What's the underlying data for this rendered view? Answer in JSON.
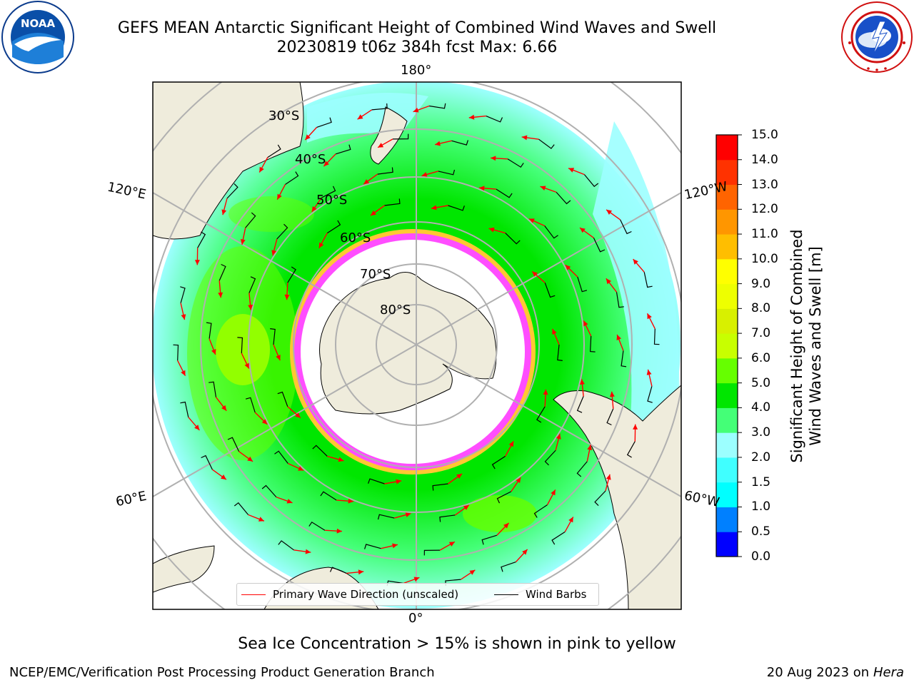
{
  "header": {
    "title_line1": "GEFS MEAN Antarctic Significant Height of Combined Wind Waves and Swell",
    "title_line2": "20230819 t06z 384h fcst   Max: 6.66"
  },
  "logos": {
    "left": {
      "name": "NOAA",
      "ring_text": "NATIONAL OCEANIC AND ATMOSPHERIC ADMINISTRATION · U.S. DEPARTMENT OF COMMERCE"
    },
    "right": {
      "ring_text": "NATIONAL WEATHER SERVICE"
    }
  },
  "map": {
    "projection": "south-polar-stereographic",
    "longitude_labels": {
      "top": "180°",
      "bottom": "0°",
      "upper_left": "120°E",
      "lower_left": "60°E",
      "upper_right": "120°W",
      "lower_right": "60°W"
    },
    "latitude_labels": [
      "30°S",
      "40°S",
      "50°S",
      "60°S",
      "70°S",
      "80°S"
    ],
    "colors": {
      "land": "#efecdc",
      "ice_white": "#ffffff",
      "ice_edge_pink": "#ff4dff",
      "ice_edge_yellow": "#ffc832",
      "grid": "#b0b0b0",
      "wave_arrow": "#ff0000",
      "wind_barb": "#000000"
    }
  },
  "colorbar": {
    "label_line1": "Significant Height of Combined",
    "label_line2": "Wind Waves and Swell [m]",
    "ticks": [
      "15.0",
      "14.0",
      "13.0",
      "12.0",
      "11.0",
      "10.0",
      "9.0",
      "8.0",
      "7.0",
      "6.0",
      "5.0",
      "4.0",
      "3.0",
      "2.0",
      "1.5",
      "1.0",
      "0.5",
      "0.0"
    ],
    "bins": [
      {
        "from": 0.0,
        "to": 0.5,
        "color": "#0000ff"
      },
      {
        "from": 0.5,
        "to": 1.0,
        "color": "#0080ff"
      },
      {
        "from": 1.0,
        "to": 1.5,
        "color": "#00ffff"
      },
      {
        "from": 1.5,
        "to": 2.0,
        "color": "#40ffff"
      },
      {
        "from": 2.0,
        "to": 3.0,
        "color": "#9cffff"
      },
      {
        "from": 3.0,
        "to": 4.0,
        "color": "#44ff77"
      },
      {
        "from": 4.0,
        "to": 5.0,
        "color": "#00e600"
      },
      {
        "from": 5.0,
        "to": 6.0,
        "color": "#66ff00"
      },
      {
        "from": 6.0,
        "to": 7.0,
        "color": "#c8ff00"
      },
      {
        "from": 7.0,
        "to": 8.0,
        "color": "#d8f000"
      },
      {
        "from": 8.0,
        "to": 9.0,
        "color": "#eeff00"
      },
      {
        "from": 9.0,
        "to": 10.0,
        "color": "#ffff00"
      },
      {
        "from": 10.0,
        "to": 11.0,
        "color": "#ffbe00"
      },
      {
        "from": 11.0,
        "to": 12.0,
        "color": "#ff9600"
      },
      {
        "from": 12.0,
        "to": 13.0,
        "color": "#ff6400"
      },
      {
        "from": 13.0,
        "to": 14.0,
        "color": "#ff3200"
      },
      {
        "from": 14.0,
        "to": 15.0,
        "color": "#ff0000"
      }
    ]
  },
  "legend": {
    "wave_label": "Primary Wave Direction (unscaled)",
    "wind_label": "Wind Barbs"
  },
  "notes": {
    "ice": "Sea Ice Concentration > 15% is shown in pink to yellow"
  },
  "footer": {
    "left": "NCEP/EMC/Verification Post Processing Product Generation Branch",
    "right_prefix": "20 Aug 2023 on",
    "right_italic": "Hera"
  }
}
